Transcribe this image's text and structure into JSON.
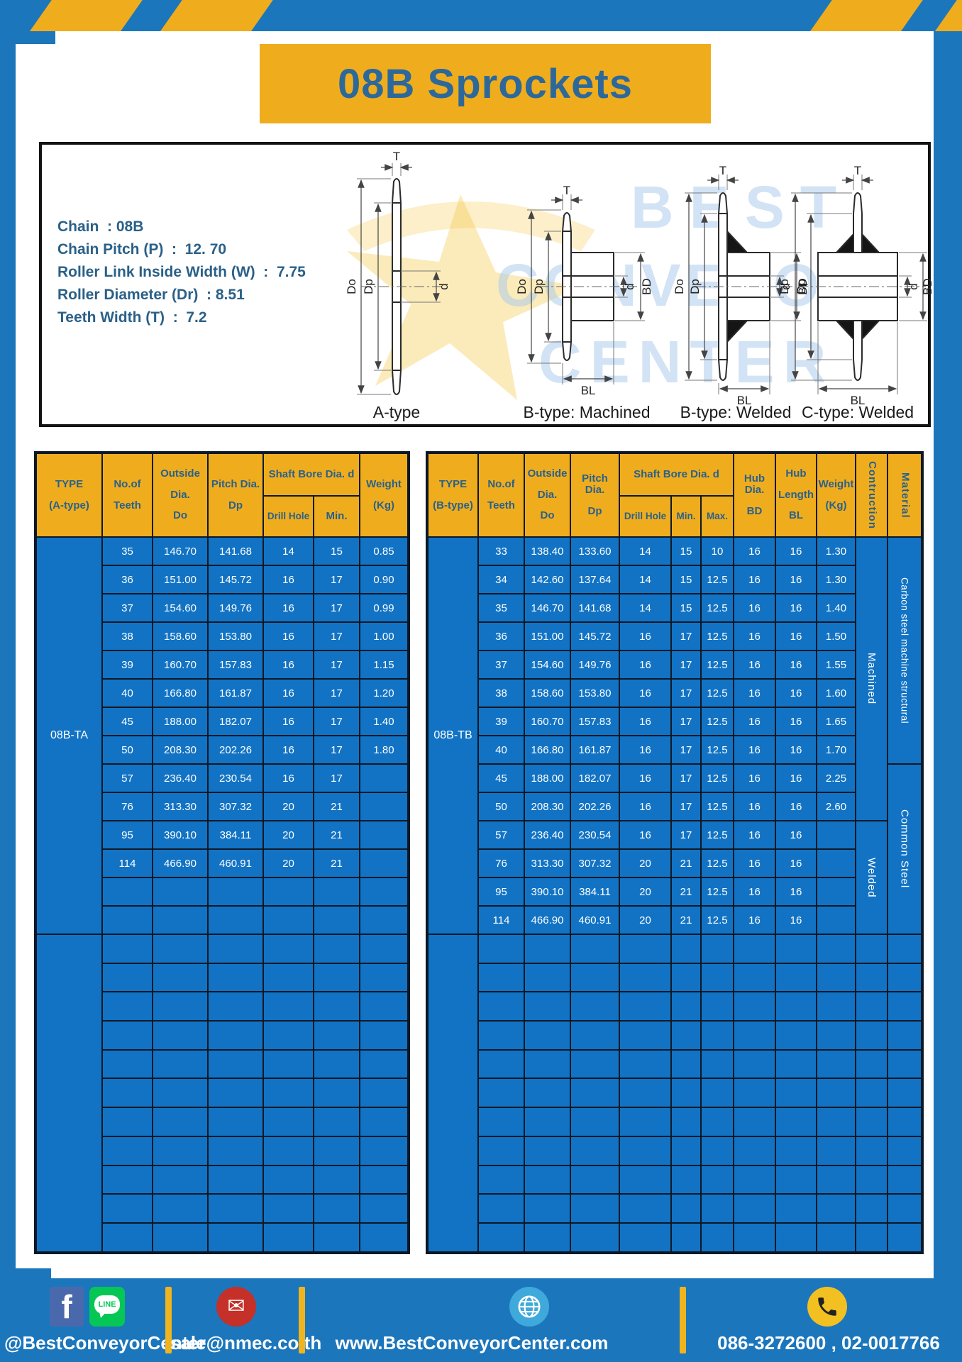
{
  "page": {
    "title": "08B Sprockets"
  },
  "specs": {
    "lines": [
      "Chain  : 08B",
      "Chain Pitch (P)  :  12. 70",
      "Roller Link Inside Width (W)  :  7.75",
      "Roller Diameter (Dr)  : 8.51",
      "Teeth Width (T)  :  7.2"
    ]
  },
  "diagram": {
    "captions": [
      "A-type",
      "B-type: Machined",
      "B-type: Welded",
      "C-type: Welded"
    ],
    "dims": {
      "T": "T",
      "Do": "Do",
      "Dp": "Dp",
      "d": "d",
      "BD": "BD",
      "BL": "BL"
    },
    "watermark": [
      "BEST",
      "CONVEYOR",
      "CENTER"
    ]
  },
  "left_table": {
    "header": {
      "type": [
        "TYPE",
        "(A-type)"
      ],
      "no_of": [
        "No.of",
        "Teeth"
      ],
      "outside": [
        "Outside",
        "Dia.",
        "Do"
      ],
      "pitch": [
        "Pitch Dia.",
        "Dp"
      ],
      "shaft_bore": "Shaft Bore Dia. d",
      "drill_hole": "Drill Hole",
      "min": "Min.",
      "weight": [
        "Weight",
        "(Kg)"
      ]
    },
    "type_label": "08B-TA",
    "rows": [
      [
        "35",
        "146.70",
        "141.68",
        "14",
        "15",
        "0.85"
      ],
      [
        "36",
        "151.00",
        "145.72",
        "16",
        "17",
        "0.90"
      ],
      [
        "37",
        "154.60",
        "149.76",
        "16",
        "17",
        "0.99"
      ],
      [
        "38",
        "158.60",
        "153.80",
        "16",
        "17",
        "1.00"
      ],
      [
        "39",
        "160.70",
        "157.83",
        "16",
        "17",
        "1.15"
      ],
      [
        "40",
        "166.80",
        "161.87",
        "16",
        "17",
        "1.20"
      ],
      [
        "45",
        "188.00",
        "182.07",
        "16",
        "17",
        "1.40"
      ],
      [
        "50",
        "208.30",
        "202.26",
        "16",
        "17",
        "1.80"
      ],
      [
        "57",
        "236.40",
        "230.54",
        "16",
        "17",
        ""
      ],
      [
        "76",
        "313.30",
        "307.32",
        "20",
        "21",
        ""
      ],
      [
        "95",
        "390.10",
        "384.11",
        "20",
        "21",
        ""
      ],
      [
        "114",
        "466.90",
        "460.91",
        "20",
        "21",
        ""
      ]
    ],
    "empty_rows_group1": 2,
    "empty_rows_group2": 11
  },
  "right_table": {
    "header": {
      "type": [
        "TYPE",
        "(B-type)"
      ],
      "no_of": [
        "No.of",
        "Teeth"
      ],
      "outside": [
        "Outside",
        "Dia.",
        "Do"
      ],
      "pitch": [
        "Pitch Dia.",
        "Dp"
      ],
      "shaft_bore": "Shaft Bore Dia. d",
      "drill_hole": "Drill Hole",
      "min": "Min.",
      "max": "Max.",
      "hub_dia": [
        "Hub Dia.",
        "BD"
      ],
      "hub_len": [
        "Hub",
        "Length",
        "BL"
      ],
      "weight": [
        "Weight",
        "(Kg)"
      ],
      "construction": "Contruction",
      "material": "Material"
    },
    "type_label": "08B-TB",
    "rows": [
      [
        "33",
        "138.40",
        "133.60",
        "14",
        "15",
        "10",
        "16",
        "16",
        "1.30"
      ],
      [
        "34",
        "142.60",
        "137.64",
        "14",
        "15",
        "12.5",
        "16",
        "16",
        "1.30"
      ],
      [
        "35",
        "146.70",
        "141.68",
        "14",
        "15",
        "12.5",
        "16",
        "16",
        "1.40"
      ],
      [
        "36",
        "151.00",
        "145.72",
        "16",
        "17",
        "12.5",
        "16",
        "16",
        "1.50"
      ],
      [
        "37",
        "154.60",
        "149.76",
        "16",
        "17",
        "12.5",
        "16",
        "16",
        "1.55"
      ],
      [
        "38",
        "158.60",
        "153.80",
        "16",
        "17",
        "12.5",
        "16",
        "16",
        "1.60"
      ],
      [
        "39",
        "160.70",
        "157.83",
        "16",
        "17",
        "12.5",
        "16",
        "16",
        "1.65"
      ],
      [
        "40",
        "166.80",
        "161.87",
        "16",
        "17",
        "12.5",
        "16",
        "16",
        "1.70"
      ],
      [
        "45",
        "188.00",
        "182.07",
        "16",
        "17",
        "12.5",
        "16",
        "16",
        "2.25"
      ],
      [
        "50",
        "208.30",
        "202.26",
        "16",
        "17",
        "12.5",
        "16",
        "16",
        "2.60"
      ],
      [
        "57",
        "236.40",
        "230.54",
        "16",
        "17",
        "12.5",
        "16",
        "16",
        ""
      ],
      [
        "76",
        "313.30",
        "307.32",
        "20",
        "21",
        "12.5",
        "16",
        "16",
        ""
      ],
      [
        "95",
        "390.10",
        "384.11",
        "20",
        "21",
        "12.5",
        "16",
        "16",
        ""
      ],
      [
        "114",
        "466.90",
        "460.91",
        "20",
        "21",
        "12.5",
        "16",
        "16",
        ""
      ]
    ],
    "construction": [
      {
        "label": "Machined",
        "rows": 10
      },
      {
        "label": "Welded",
        "rows": 4
      }
    ],
    "material": [
      {
        "label": "Carbon steel  machine structural",
        "rows": 8
      },
      {
        "label": "Common Steel",
        "rows": 6
      }
    ],
    "empty_rows_group2": 11
  },
  "footer": {
    "facebook_handle": "@BestConveyorCenter",
    "email": "sale@nmec.co.th",
    "website": "www.BestConveyorCenter.com",
    "phones": "086-3272600 , 02-0017766",
    "line_icon_text": "LINE",
    "facebook_icon_letter": "f",
    "email_icon_char": "✉"
  },
  "colors": {
    "frame_blue": "#1b76bc",
    "cell_blue": "#1273c4",
    "accent_yellow": "#efad1d",
    "border_navy": "#0c1826",
    "header_text": "#2a608c",
    "title_text": "#2d689a"
  }
}
